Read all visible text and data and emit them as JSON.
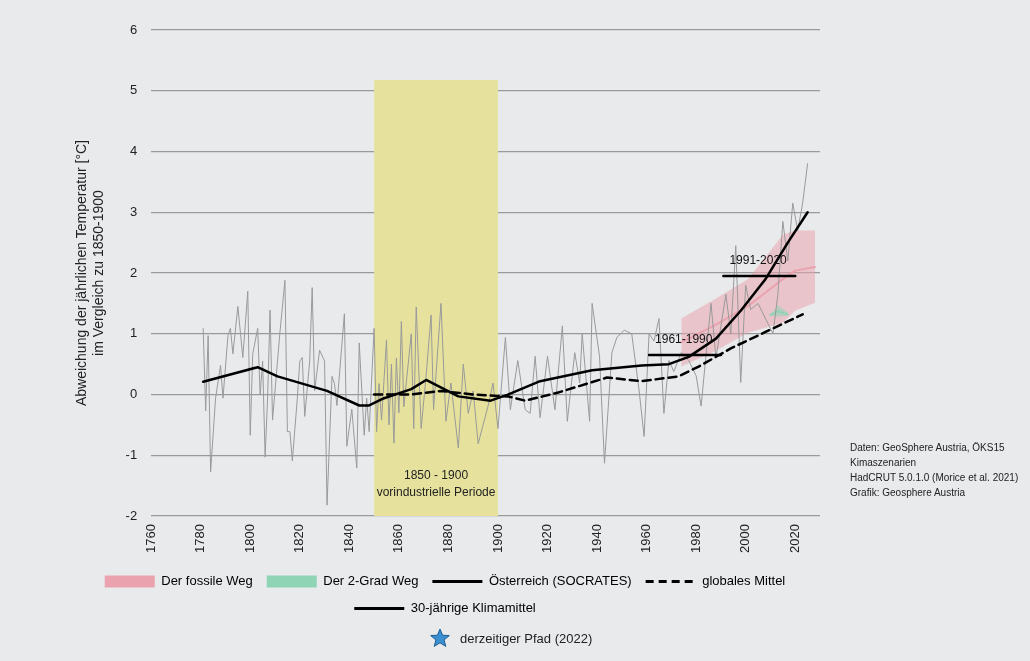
{
  "chart_data": {
    "type": "line",
    "ylabel": "Abweichung der jährlichen Temperatur [°C]\nim Vergleich zu 1850-1900",
    "xlim": [
      1760,
      2030
    ],
    "xticks": [
      1760,
      1780,
      1800,
      1820,
      1840,
      1860,
      1880,
      1900,
      1920,
      1940,
      1960,
      1980,
      2000,
      2020
    ],
    "ylim": [
      -2,
      6
    ],
    "yticks": [
      -2,
      -1,
      0,
      1,
      2,
      3,
      4,
      5,
      6
    ],
    "grid": "y",
    "legend": "bottom",
    "marker": "none",
    "series": [
      {
        "color": "#9a9a9a",
        "x": [
          1781,
          1782,
          1783,
          1784,
          1786,
          1788,
          1789,
          1791,
          1792,
          1793,
          1795,
          1797,
          1799,
          1800,
          1801,
          1803,
          1804,
          1805,
          1806,
          1807,
          1808,
          1809,
          1811,
          1812,
          1814,
          1815,
          1816,
          1817,
          1819,
          1820,
          1821,
          1822,
          1824,
          1825,
          1826,
          1828,
          1830,
          1831,
          1833,
          1834,
          1835,
          1838,
          1839,
          1841,
          1843,
          1844,
          1846,
          1847,
          1848,
          1850,
          1851,
          1852,
          1853,
          1855,
          1856,
          1857,
          1858,
          1859,
          1860,
          1861,
          1862,
          1865,
          1866,
          1867,
          1869,
          1871,
          1873,
          1874,
          1877,
          1879,
          1881,
          1884,
          1886,
          1888,
          1890,
          1892,
          1896,
          1898,
          1900,
          1903,
          1905,
          1908,
          1911,
          1913,
          1915,
          1917,
          1920,
          1923,
          1926,
          1928,
          1931,
          1933,
          1934,
          1937,
          1938,
          1941,
          1943,
          1946,
          1948,
          1951,
          1954,
          1957,
          1959,
          1961,
          1963,
          1965,
          1967,
          1969,
          1971,
          1974,
          1977,
          1980,
          1982,
          1986,
          1988,
          1992,
          1994,
          1996,
          1998,
          2000,
          2002,
          2005,
          2011,
          2013,
          2015,
          2017,
          2019,
          2021,
          2023,
          2025
        ],
        "values": [
          1.09,
          -0.27,
          0.97,
          -1.27,
          -0.06,
          0.48,
          -0.06,
          0.97,
          1.09,
          0.67,
          1.45,
          0.61,
          1.7,
          -0.67,
          0.67,
          1.09,
          0,
          0.55,
          -1.03,
          -0.06,
          1.39,
          -0.42,
          0.55,
          1.03,
          1.88,
          -0.61,
          -0.61,
          -1.09,
          -0.06,
          0.55,
          0.61,
          -0.36,
          0.55,
          1.76,
          0.06,
          0.73,
          0.55,
          -1.82,
          0.3,
          0.18,
          -0.18,
          1.33,
          -0.85,
          -0.24,
          -1.21,
          0.85,
          -0.67,
          -0.06,
          -0.61,
          1.09,
          -0.61,
          0.18,
          -0.42,
          0.9,
          -0.5,
          0.5,
          -0.8,
          0.6,
          -0.3,
          1.2,
          -0.2,
          1.0,
          -0.56,
          1.44,
          -0.56,
          0.31,
          1.31,
          -0.25,
          1.5,
          -0.44,
          0.19,
          -0.88,
          0.5,
          -0.31,
          0.06,
          -0.81,
          -0.19,
          0.19,
          -0.56,
          0.94,
          -0.25,
          0.56,
          -0.25,
          -0.31,
          0.63,
          -0.38,
          0.63,
          -0.25,
          1.13,
          -0.44,
          0.69,
          0.19,
          1.0,
          -0.44,
          1.5,
          0.63,
          -1.13,
          0.69,
          0.94,
          1.06,
          1.0,
          0.06,
          -0.69,
          1.0,
          0.88,
          1.25,
          -0.31,
          0.56,
          0.38,
          0.69,
          0.56,
          0.31,
          -0.19,
          1.5,
          0.6,
          1.65,
          1.0,
          2.45,
          0.2,
          1.8,
          1.4,
          1.5,
          1.0,
          1.65,
          2.85,
          2.2,
          3.15,
          2.7,
          3.15,
          3.8
        ]
      },
      {
        "name": "Der fossile Weg",
        "color": "#eaa3ae",
        "x": [
          1974,
          1988,
          2001,
          2015,
          2020,
          2028
        ],
        "values": [
          0.86,
          1.15,
          1.46,
          1.9,
          2.04,
          2.1
        ],
        "lower": [
          0.46,
          0.72,
          1.02,
          1.18,
          1.38,
          1.51
        ],
        "upper": [
          1.25,
          1.58,
          1.9,
          2.63,
          2.7,
          2.7
        ]
      },
      {
        "name": "Der 2-Grad Weg",
        "color": "#8fd4b4",
        "x": [
          2010,
          2013,
          2017
        ],
        "values": [
          1.31,
          1.37,
          1.32
        ],
        "lower": [
          1.3,
          1.28,
          1.3
        ],
        "upper": [
          1.32,
          1.47,
          1.35
        ]
      },
      {
        "name": "Österreich (SOCRATES)",
        "color": "#000000",
        "line_style": "solid",
        "x": [
          1781,
          1803,
          1811,
          1831,
          1844,
          1848,
          1854,
          1865,
          1871,
          1884,
          1897,
          1904,
          1917,
          1938,
          1958,
          1969,
          1977,
          1988,
          1998,
          2008,
          2017,
          2025
        ],
        "values": [
          0.21,
          0.45,
          0.3,
          0.06,
          -0.18,
          -0.18,
          -0.06,
          0.09,
          0.24,
          -0.03,
          -0.1,
          0,
          0.22,
          0.4,
          0.48,
          0.5,
          0.62,
          0.92,
          1.38,
          1.9,
          2.5,
          3.0
        ]
      },
      {
        "name": "globales Mittel",
        "color": "#000000",
        "line_style": "dashed",
        "x": [
          1850,
          1865,
          1877,
          1890,
          1904,
          1911,
          1924,
          1944,
          1958,
          1973,
          1981,
          1994,
          2008,
          2023
        ],
        "values": [
          0,
          0,
          0.06,
          0,
          -0.03,
          -0.1,
          0.03,
          0.28,
          0.22,
          0.3,
          0.46,
          0.76,
          1.03,
          1.32
        ]
      },
      {
        "name": "30-jährige Klimamittel",
        "color": "#000000",
        "line_style": "solid",
        "x": [
          1961,
          1990,
          1990.5,
          1991,
          2020
        ],
        "values": [
          0.65,
          0.65,
          null,
          1.95,
          1.95
        ]
      }
    ],
    "bands": [
      {
        "axis": "x",
        "from": 1850,
        "to": 1900,
        "label": "1850 - 1900\nvorindustrielle Periode",
        "color": "#e6e29e"
      }
    ],
    "annotations": [
      {
        "text": "1961-1990",
        "x": 1975,
        "y": 0.65
      },
      {
        "text": "1991-2020",
        "x": 2005,
        "y": 1.95
      },
      "Daten: GeoSphere Austria, ÖKS15 Kimaszenarien",
      "HadCRUT 5.0.1.0 (Morice et al. 2021)",
      "Grafik: Geosphere Austria",
      "derzeitiger Pfad (2022)"
    ]
  }
}
